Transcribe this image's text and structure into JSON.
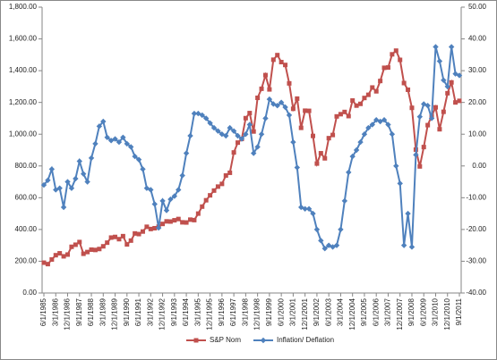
{
  "chart_data": {
    "type": "line",
    "categories": [
      "6/1/1985",
      null,
      null,
      "3/1/1986",
      null,
      null,
      "12/1/1986",
      null,
      null,
      "9/1/1987",
      null,
      null,
      "6/1/1988",
      null,
      null,
      "3/1/1989",
      null,
      null,
      "12/1/1989",
      null,
      null,
      "9/1/1990",
      null,
      null,
      "6/1/1991",
      null,
      null,
      "3/1/1992",
      null,
      null,
      "12/1/1992",
      null,
      null,
      "9/1/1993",
      null,
      null,
      "6/1/1994",
      null,
      null,
      "3/1/1995",
      null,
      null,
      "12/1/1995",
      null,
      null,
      "9/1/1996",
      null,
      null,
      "6/1/1997",
      null,
      null,
      "3/1/1998",
      null,
      null,
      "12/1/1998",
      null,
      null,
      "9/1/1999",
      null,
      null,
      "6/1/2000",
      null,
      null,
      "3/1/2001",
      null,
      null,
      "12/1/2001",
      null,
      null,
      "9/1/2002",
      null,
      null,
      "6/1/2003",
      null,
      null,
      "3/1/2004",
      null,
      null,
      "12/1/2004",
      null,
      null,
      "9/1/2005",
      null,
      null,
      "6/1/2006",
      null,
      null,
      "3/1/2007",
      null,
      null,
      "12/1/2007",
      null,
      null,
      "9/1/2008",
      null,
      null,
      "6/1/2009",
      null,
      null,
      "3/1/2010",
      null,
      null,
      "12/1/2010",
      null,
      null,
      "9/1/2011"
    ],
    "series": [
      {
        "name": "S&P Nom",
        "color": "#c0504d",
        "marker": "square",
        "values": [
          191,
          182,
          211,
          238,
          250,
          231,
          242,
          291,
          304,
          321,
          247,
          258,
          273,
          271,
          277,
          294,
          317,
          349,
          353,
          339,
          358,
          306,
          330,
          375,
          371,
          387,
          417,
          403,
          408,
          418,
          435,
          451,
          450,
          458,
          466,
          445,
          444,
          462,
          459,
          500,
          544,
          584,
          615,
          645,
          670,
          687,
          740,
          757,
          885,
          947,
          970,
          1101,
          1133,
          1017,
          1229,
          1286,
          1372,
          1282,
          1469,
          1498,
          1454,
          1436,
          1320,
          1160,
          1224,
          1040,
          1148,
          1147,
          989,
          815,
          880,
          848,
          975,
          995,
          1112,
          1126,
          1140,
          1114,
          1212,
          1180,
          1191,
          1228,
          1248,
          1294,
          1270,
          1335,
          1418,
          1420,
          1503,
          1526,
          1468,
          1322,
          1280,
          1166,
          903,
          797,
          919,
          1057,
          1115,
          1169,
          1031,
          1141,
          1258,
          1326,
          1200,
          1210
        ]
      },
      {
        "name": "Inflation/ Deflation",
        "color": "#4f81bd",
        "marker": "diamond",
        "axis": "y2",
        "values": [
          -6,
          -4.5,
          -1,
          -7.5,
          -7,
          -13,
          -5,
          -7,
          -4,
          1.5,
          -2.5,
          -5,
          2.5,
          7,
          12.5,
          14,
          9,
          8,
          8.5,
          7.5,
          9,
          7,
          6,
          3,
          2,
          -1,
          -7,
          -7.5,
          -12,
          -19.5,
          -11,
          -14,
          -10.5,
          -9.5,
          -7.5,
          -3,
          4,
          9.5,
          16.5,
          16.5,
          16,
          15,
          13.5,
          12,
          11,
          10,
          9.5,
          12,
          11,
          9.5,
          8.5,
          10,
          13,
          4,
          6,
          10,
          15,
          21,
          19.5,
          19,
          20,
          18.5,
          16,
          7.5,
          -0.5,
          -13,
          -13.5,
          -13.5,
          -15,
          -20,
          -23.5,
          -26,
          -25,
          -25.5,
          -25,
          -20,
          -11,
          -2,
          3,
          5,
          7.5,
          10,
          12,
          13,
          14.5,
          14,
          14.5,
          13,
          10,
          0,
          -5.5,
          -25,
          -15,
          -25.5,
          3.5,
          15.5,
          19.5,
          19,
          15,
          37.5,
          33,
          27,
          25,
          37.5,
          29,
          28.5
        ]
      }
    ],
    "ylim": [
      0,
      1800
    ],
    "yticks": [
      {
        "value": 0,
        "label": "0.00"
      },
      {
        "value": 200,
        "label": "200.00"
      },
      {
        "value": 400,
        "label": "400.00"
      },
      {
        "value": 600,
        "label": "600.00"
      },
      {
        "value": 800,
        "label": "800.00"
      },
      {
        "value": 1000,
        "label": "1,000.00"
      },
      {
        "value": 1200,
        "label": "1,200.00"
      },
      {
        "value": 1400,
        "label": "1,400.00"
      },
      {
        "value": 1600,
        "label": "1,600.00"
      },
      {
        "value": 1800,
        "label": "1,800.00"
      }
    ],
    "y2lim": [
      -40,
      50
    ],
    "y2ticks": [
      {
        "value": -40,
        "label": "-40.00"
      },
      {
        "value": -30,
        "label": "-30.00"
      },
      {
        "value": -20,
        "label": "-20.00"
      },
      {
        "value": -10,
        "label": "-10.00"
      },
      {
        "value": 0,
        "label": "0.00"
      },
      {
        "value": 10,
        "label": "10.00"
      },
      {
        "value": 20,
        "label": "20.00"
      },
      {
        "value": 30,
        "label": "30.00"
      },
      {
        "value": 40,
        "label": "40.00"
      },
      {
        "value": 50,
        "label": "50.00"
      }
    ],
    "grid": false,
    "legend": "bottom"
  }
}
